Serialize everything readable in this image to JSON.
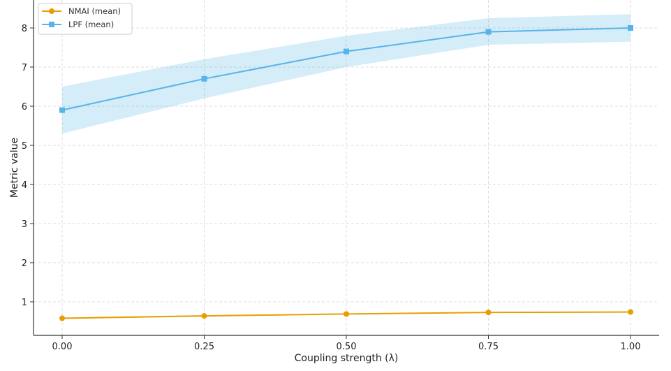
{
  "chart_data": {
    "type": "line",
    "title": "",
    "xlabel": "Coupling strength (λ)",
    "ylabel": "Metric value",
    "x": [
      0.0,
      0.25,
      0.5,
      0.75,
      1.0
    ],
    "x_tick_labels": [
      "0.00",
      "0.25",
      "0.50",
      "0.75",
      "1.00"
    ],
    "y_tick_labels": [
      "1",
      "2",
      "3",
      "4",
      "5",
      "6",
      "7",
      "8"
    ],
    "xlim": [
      -0.05,
      1.05
    ],
    "ylim": [
      0.15,
      8.7
    ],
    "grid": true,
    "legend_position": "upper left",
    "series": [
      {
        "name": "NMAI (mean)",
        "color": "#E69F00",
        "marker": "circle",
        "values": [
          0.58,
          0.64,
          0.69,
          0.73,
          0.74
        ],
        "band_lower": [
          0.56,
          0.62,
          0.68,
          0.72,
          0.73
        ],
        "band_upper": [
          0.6,
          0.66,
          0.7,
          0.74,
          0.75
        ]
      },
      {
        "name": "LPF (mean)",
        "color": "#56B4E9",
        "marker": "square",
        "values": [
          5.9,
          6.7,
          7.4,
          7.9,
          8.0
        ],
        "band_lower": [
          5.3,
          6.2,
          7.0,
          7.57,
          7.65
        ],
        "band_upper": [
          6.5,
          7.2,
          7.8,
          8.25,
          8.35
        ]
      }
    ]
  }
}
